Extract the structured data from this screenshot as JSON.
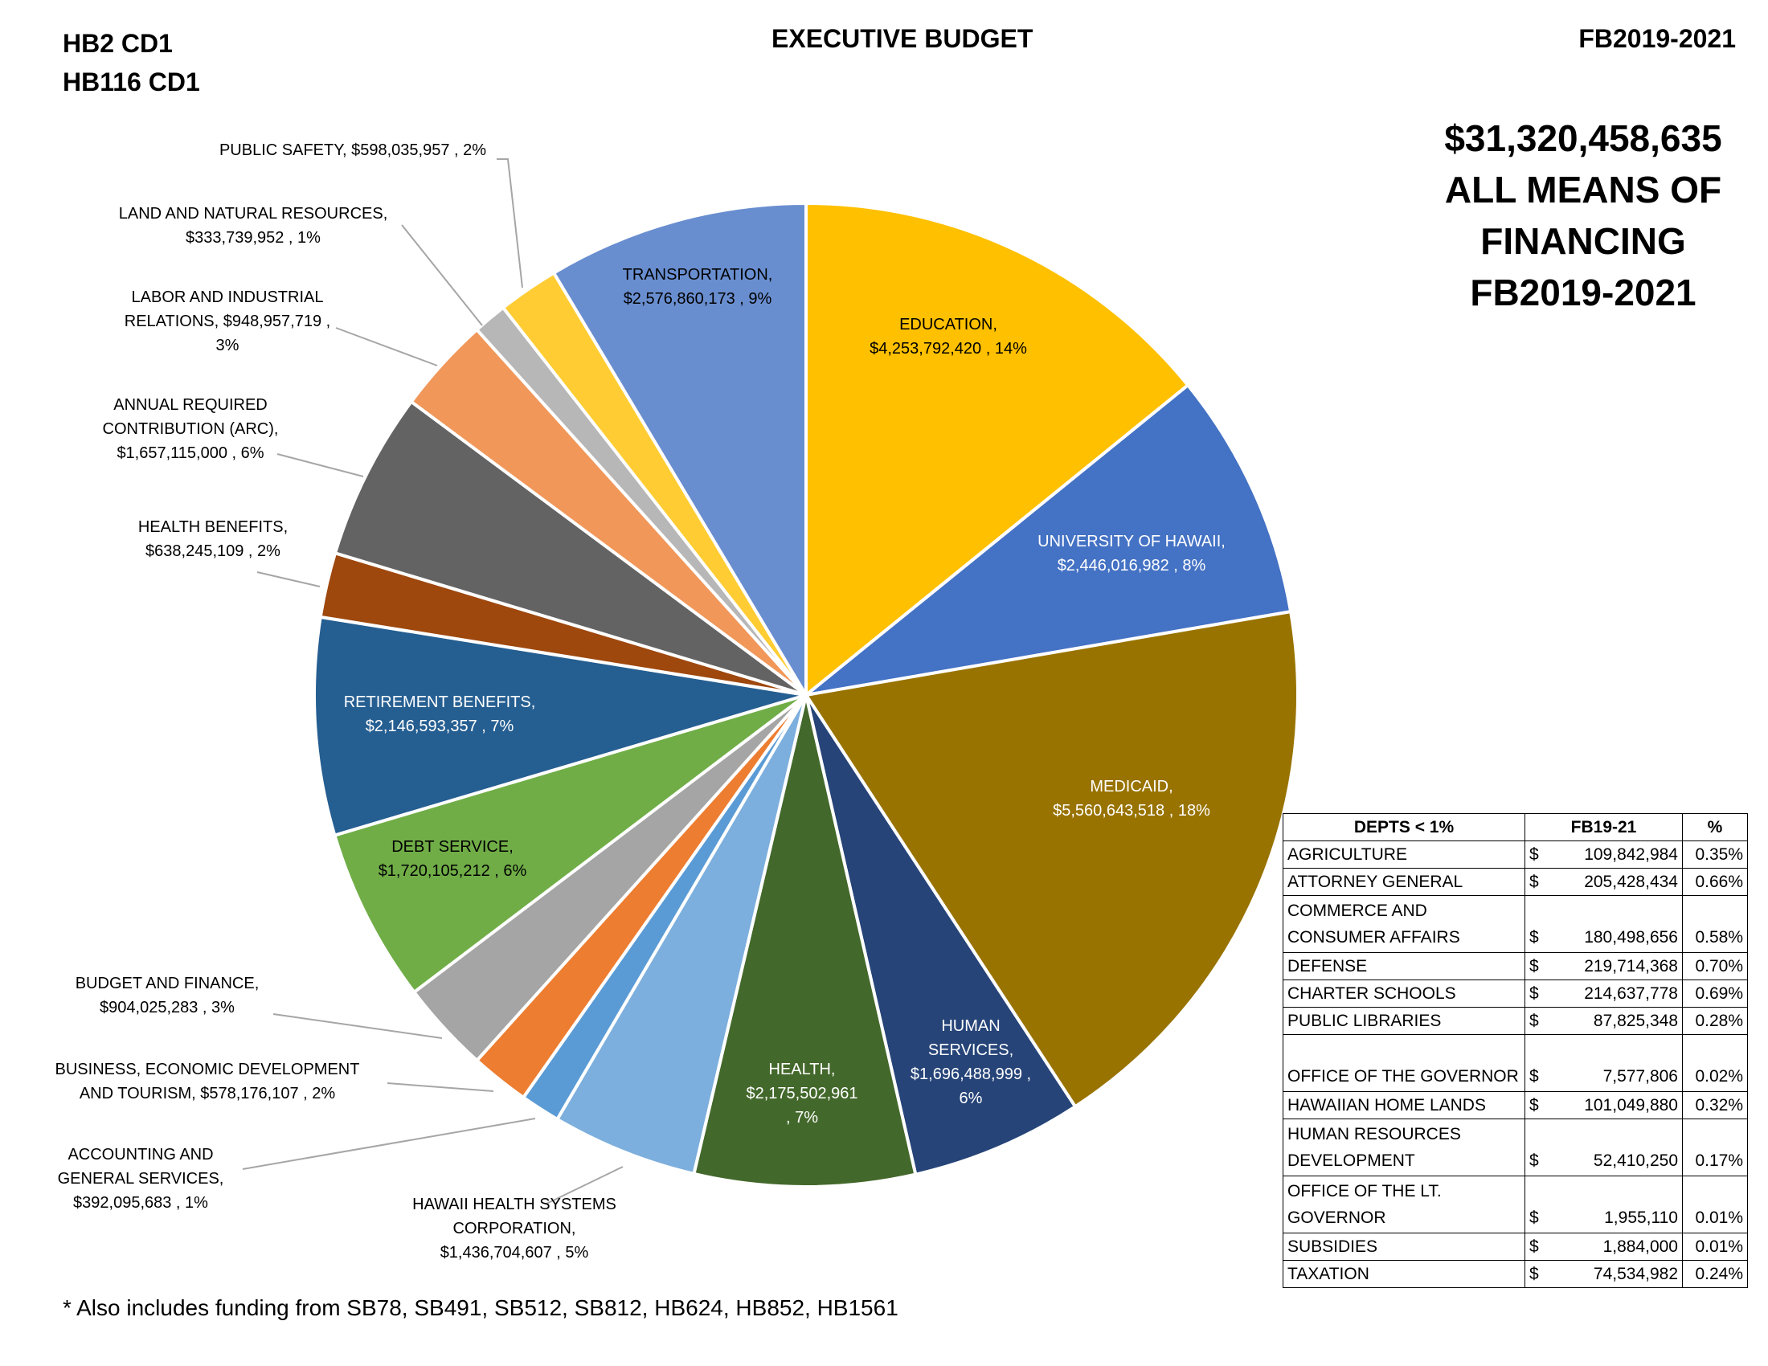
{
  "header": {
    "left_line1": "HB2 CD1",
    "left_line2": "HB116 CD1",
    "center": "EXECUTIVE BUDGET",
    "right": "FB2019-2021"
  },
  "total": {
    "amount": "$31,320,458,635",
    "line2": "ALL MEANS OF",
    "line3": "FINANCING",
    "line4": "FB2019-2021"
  },
  "footnote": "* Also includes funding from SB78, SB491, SB512, SB812, HB624, HB852, HB1561",
  "chart_data": {
    "type": "pie",
    "start": "top, clockwise",
    "slices": [
      {
        "name": "EDUCATION",
        "value": 4253792420,
        "amount": "$4,253,792,420",
        "pct": "14%",
        "color": "#FFC000",
        "label": [
          "EDUCATION,",
          "$4,253,792,420 , 14%"
        ]
      },
      {
        "name": "UNIVERSITY OF HAWAII",
        "value": 2446016982,
        "amount": "$2,446,016,982",
        "pct": "8%",
        "color": "#4472C4",
        "label": [
          "UNIVERSITY OF HAWAII,",
          "$2,446,016,982 , 8%"
        ]
      },
      {
        "name": "MEDICAID",
        "value": 5560643518,
        "amount": "$5,560,643,518",
        "pct": "18%",
        "color": "#997300",
        "label": [
          "MEDICAID,",
          "$5,560,643,518 , 18%"
        ]
      },
      {
        "name": "HUMAN SERVICES",
        "value": 1696488999,
        "amount": "$1,696,488,999",
        "pct": "6%",
        "color": "#264478",
        "label": [
          "HUMAN",
          "SERVICES,",
          "$1,696,488,999 ,",
          "6%"
        ]
      },
      {
        "name": "HEALTH",
        "value": 2175502961,
        "amount": "$2,175,502,961",
        "pct": "7%",
        "color": "#43682B",
        "label": [
          "HEALTH,",
          "$2,175,502,961",
          ", 7%"
        ]
      },
      {
        "name": "HAWAII HEALTH SYSTEMS CORPORATION",
        "value": 1436704607,
        "amount": "$1,436,704,607",
        "pct": "5%",
        "color": "#7CAFDD",
        "label": [
          "HAWAII HEALTH SYSTEMS",
          "CORPORATION,",
          "$1,436,704,607 , 5%"
        ]
      },
      {
        "name": "ACCOUNTING AND GENERAL SERVICES",
        "value": 392095683,
        "amount": "$392,095,683",
        "pct": "1%",
        "color": "#5B9BD5",
        "label": [
          "ACCOUNTING AND",
          "GENERAL SERVICES,",
          "$392,095,683 , 1%"
        ]
      },
      {
        "name": "BUSINESS, ECONOMIC DEVELOPMENT AND TOURISM",
        "value": 578176107,
        "amount": "$578,176,107",
        "pct": "2%",
        "color": "#ED7D31",
        "label": [
          "BUSINESS, ECONOMIC DEVELOPMENT",
          "AND TOURISM,  $578,176,107 , 2%"
        ]
      },
      {
        "name": "BUDGET AND FINANCE",
        "value": 904025283,
        "amount": "$904,025,283",
        "pct": "3%",
        "color": "#A5A5A5",
        "label": [
          "BUDGET AND FINANCE,",
          "$904,025,283 , 3%"
        ]
      },
      {
        "name": "DEBT SERVICE",
        "value": 1720105212,
        "amount": "$1,720,105,212",
        "pct": "6%",
        "color": "#70AD47",
        "label": [
          "DEBT SERVICE,",
          "$1,720,105,212 , 6%"
        ]
      },
      {
        "name": "RETIREMENT BENEFITS",
        "value": 2146593357,
        "amount": "$2,146,593,357",
        "pct": "7%",
        "color": "#255E91",
        "label": [
          "RETIREMENT BENEFITS,",
          "$2,146,593,357 , 7%"
        ]
      },
      {
        "name": "HEALTH BENEFITS",
        "value": 638245109,
        "amount": "$638,245,109",
        "pct": "2%",
        "color": "#9E480E",
        "label": [
          "HEALTH BENEFITS,",
          "$638,245,109 , 2%"
        ]
      },
      {
        "name": "ANNUAL REQUIRED CONTRIBUTION (ARC)",
        "value": 1657115000,
        "amount": "$1,657,115,000",
        "pct": "6%",
        "color": "#636363",
        "label": [
          "ANNUAL REQUIRED",
          "CONTRIBUTION (ARC),",
          "$1,657,115,000 , 6%"
        ]
      },
      {
        "name": "LABOR AND INDUSTRIAL RELATIONS",
        "value": 948957719,
        "amount": "$948,957,719",
        "pct": "3%",
        "color": "#F1975A",
        "label": [
          "LABOR AND INDUSTRIAL",
          "RELATIONS,  $948,957,719 ,",
          "3%"
        ]
      },
      {
        "name": "LAND AND NATURAL RESOURCES",
        "value": 333739952,
        "amount": "$333,739,952",
        "pct": "1%",
        "color": "#B7B7B7",
        "label": [
          "LAND AND NATURAL RESOURCES,",
          "$333,739,952 , 1%"
        ]
      },
      {
        "name": "PUBLIC SAFETY",
        "value": 598035957,
        "amount": "$598,035,957",
        "pct": "2%",
        "color": "#FFCD33",
        "label": [
          "PUBLIC SAFETY,  $598,035,957 , 2%"
        ]
      },
      {
        "name": "TRANSPORTATION",
        "value": 2576860173,
        "amount": "$2,576,860,173",
        "pct": "9%",
        "color": "#698ED0",
        "label": [
          "TRANSPORTATION,",
          "$2,576,860,173 , 9%"
        ]
      }
    ]
  },
  "small_table": {
    "headers": [
      "DEPTS < 1%",
      "FB19-21",
      "%"
    ],
    "rows": [
      {
        "dept": [
          "AGRICULTURE"
        ],
        "cur": "$",
        "amount": "109,842,984",
        "pct": "0.35%"
      },
      {
        "dept": [
          "ATTORNEY GENERAL"
        ],
        "cur": "$",
        "amount": "205,428,434",
        "pct": "0.66%"
      },
      {
        "dept": [
          "COMMERCE AND",
          "CONSUMER AFFAIRS"
        ],
        "cur": "$",
        "amount": "180,498,656",
        "pct": "0.58%"
      },
      {
        "dept": [
          "DEFENSE"
        ],
        "cur": "$",
        "amount": "219,714,368",
        "pct": "0.70%"
      },
      {
        "dept": [
          "CHARTER SCHOOLS"
        ],
        "cur": "$",
        "amount": "214,637,778",
        "pct": "0.69%"
      },
      {
        "dept": [
          "PUBLIC LIBRARIES"
        ],
        "cur": "$",
        "amount": "87,825,348",
        "pct": "0.28%"
      },
      {
        "dept": [
          "",
          "OFFICE OF THE GOVERNOR"
        ],
        "cur": "$",
        "amount": "7,577,806",
        "pct": "0.02%"
      },
      {
        "dept": [
          "HAWAIIAN HOME LANDS"
        ],
        "cur": "$",
        "amount": "101,049,880",
        "pct": "0.32%"
      },
      {
        "dept": [
          "HUMAN RESOURCES",
          "DEVELOPMENT"
        ],
        "cur": "$",
        "amount": "52,410,250",
        "pct": "0.17%"
      },
      {
        "dept": [
          "OFFICE OF THE LT.",
          "GOVERNOR"
        ],
        "cur": "$",
        "amount": "1,955,110",
        "pct": "0.01%"
      },
      {
        "dept": [
          "SUBSIDIES"
        ],
        "cur": "$",
        "amount": "1,884,000",
        "pct": "0.01%"
      },
      {
        "dept": [
          "TAXATION"
        ],
        "cur": "$",
        "amount": "74,534,982",
        "pct": "0.24%"
      }
    ]
  }
}
